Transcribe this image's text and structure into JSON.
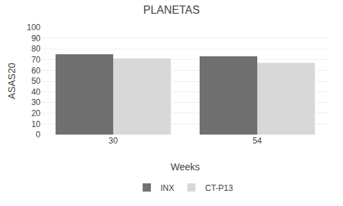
{
  "chart_data": {
    "type": "bar",
    "title": "PLANETAS",
    "xlabel": "Weeks",
    "ylabel": "ASAS20",
    "categories": [
      "30",
      "54"
    ],
    "series": [
      {
        "name": "INX",
        "color": "#707070",
        "values": [
          75,
          73
        ]
      },
      {
        "name": "CT-P13",
        "color": "#d8d8d8",
        "values": [
          71,
          67
        ]
      }
    ],
    "ylim": [
      0,
      100
    ],
    "yticks": [
      0,
      10,
      20,
      30,
      40,
      50,
      60,
      70,
      80,
      90,
      100
    ],
    "grid": true,
    "legend": "bottom"
  }
}
